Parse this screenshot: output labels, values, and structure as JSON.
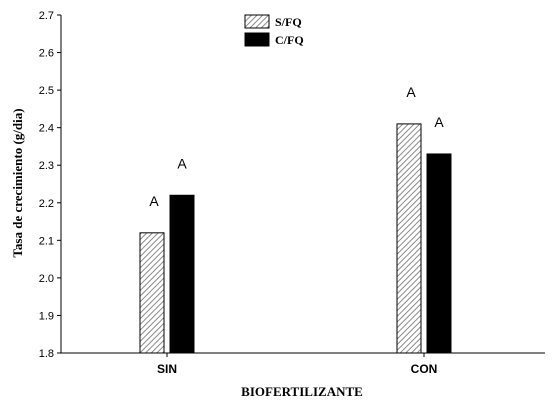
{
  "chart_data": {
    "type": "bar",
    "title": "",
    "xlabel": "BIOFERTILIZANTE",
    "ylabel": "Tasa de crecimiento (g/dia)",
    "ylim": [
      1.8,
      2.7
    ],
    "yticks": [
      "1.8",
      "1.9",
      "2.0",
      "2.1",
      "2.2",
      "2.3",
      "2.4",
      "2.5",
      "2.6",
      "2.7"
    ],
    "categories": [
      "SIN",
      "CON"
    ],
    "series": [
      {
        "name": "S/FQ",
        "values": [
          2.12,
          2.41
        ],
        "letters": [
          "A",
          "A"
        ],
        "fill": "hatched"
      },
      {
        "name": "C/FQ",
        "values": [
          2.22,
          2.33
        ],
        "letters": [
          "A",
          "A"
        ],
        "fill": "#000000"
      }
    ],
    "legend_position": "top-center",
    "grid": false
  }
}
